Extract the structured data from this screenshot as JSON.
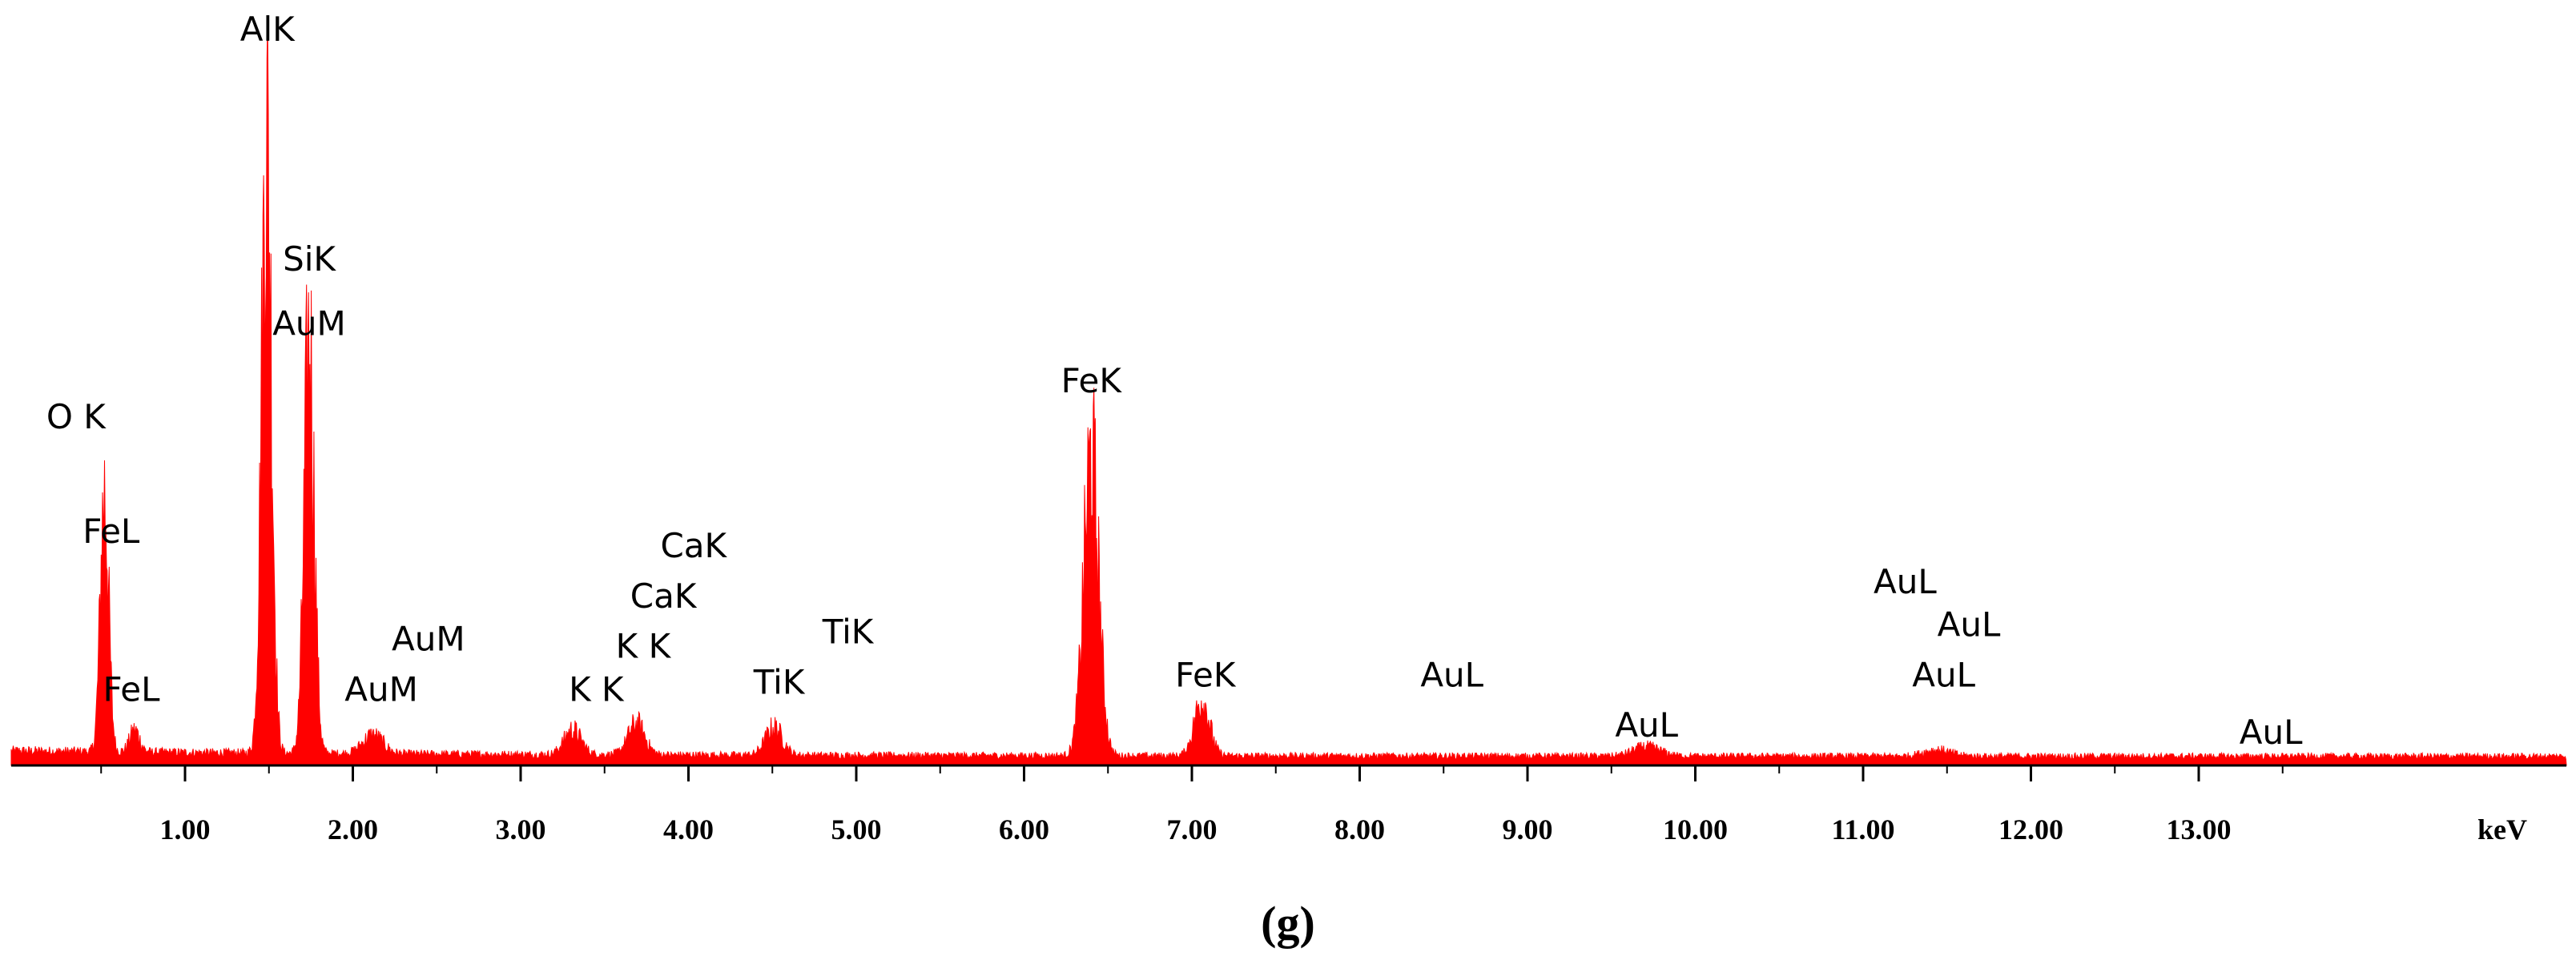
{
  "panel_label": "(g)",
  "chart_data": {
    "type": "area",
    "title": "",
    "xlabel": "",
    "ylabel": "",
    "x_unit_label": "keV",
    "xlim": [
      0.0,
      14.0
    ],
    "ylim": [
      0,
      100
    ],
    "grid": false,
    "x_ticks": [
      {
        "value": 1.0,
        "label": "1.00"
      },
      {
        "value": 2.0,
        "label": "2.00"
      },
      {
        "value": 3.0,
        "label": "3.00"
      },
      {
        "value": 4.0,
        "label": "4.00"
      },
      {
        "value": 5.0,
        "label": "5.00"
      },
      {
        "value": 6.0,
        "label": "6.00"
      },
      {
        "value": 7.0,
        "label": "7.00"
      },
      {
        "value": 8.0,
        "label": "8.00"
      },
      {
        "value": 9.0,
        "label": "9.00"
      },
      {
        "value": 10.0,
        "label": "10.00"
      },
      {
        "value": 11.0,
        "label": "11.00"
      },
      {
        "value": 12.0,
        "label": "12.00"
      },
      {
        "value": 13.0,
        "label": "13.00"
      }
    ],
    "series_color": "#ff0000",
    "background_level": 1.5,
    "peaks": [
      {
        "energy": 0.52,
        "height": 42.0,
        "width": 0.025
      },
      {
        "energy": 0.7,
        "height": 3.5,
        "width": 0.03
      },
      {
        "energy": 1.486,
        "height": 100.0,
        "width": 0.03
      },
      {
        "energy": 1.74,
        "height": 66.0,
        "width": 0.03
      },
      {
        "energy": 2.12,
        "height": 3.0,
        "width": 0.06
      },
      {
        "energy": 3.31,
        "height": 4.0,
        "width": 0.05
      },
      {
        "energy": 3.69,
        "height": 5.0,
        "width": 0.05
      },
      {
        "energy": 4.51,
        "height": 4.5,
        "width": 0.05
      },
      {
        "energy": 6.4,
        "height": 48.0,
        "width": 0.045
      },
      {
        "energy": 7.06,
        "height": 9.0,
        "width": 0.045
      },
      {
        "energy": 9.71,
        "height": 1.5,
        "width": 0.08
      },
      {
        "energy": 11.44,
        "height": 1.0,
        "width": 0.08
      }
    ],
    "peak_labels": [
      {
        "text": "AlK",
        "energy": 1.49,
        "level": 101
      },
      {
        "text": "SiK",
        "energy": 1.74,
        "level": 69
      },
      {
        "text": "AuM",
        "energy": 1.74,
        "level": 60
      },
      {
        "text": "O K",
        "energy": 0.35,
        "level": 47
      },
      {
        "text": "FeL",
        "energy": 0.56,
        "level": 31
      },
      {
        "text": "FeL",
        "energy": 0.68,
        "level": 9
      },
      {
        "text": "AuM",
        "energy": 2.45,
        "level": 16
      },
      {
        "text": "AuM",
        "energy": 2.17,
        "level": 9
      },
      {
        "text": "CaK",
        "energy": 4.03,
        "level": 29
      },
      {
        "text": "CaK",
        "energy": 3.85,
        "level": 22
      },
      {
        "text": "K K",
        "energy": 3.73,
        "level": 15
      },
      {
        "text": "K K",
        "energy": 3.45,
        "level": 9
      },
      {
        "text": "TiK",
        "energy": 4.95,
        "level": 17
      },
      {
        "text": "TiK",
        "energy": 4.54,
        "level": 10
      },
      {
        "text": "FeK",
        "energy": 6.4,
        "level": 52
      },
      {
        "text": "FeK",
        "energy": 7.08,
        "level": 11
      },
      {
        "text": "AuL",
        "energy": 8.55,
        "level": 11
      },
      {
        "text": "AuL",
        "energy": 9.71,
        "level": 4
      },
      {
        "text": "AuL",
        "energy": 11.25,
        "level": 24
      },
      {
        "text": "AuL",
        "energy": 11.63,
        "level": 18
      },
      {
        "text": "AuL",
        "energy": 11.48,
        "level": 11
      },
      {
        "text": "AuL",
        "energy": 13.43,
        "level": 3
      }
    ]
  }
}
